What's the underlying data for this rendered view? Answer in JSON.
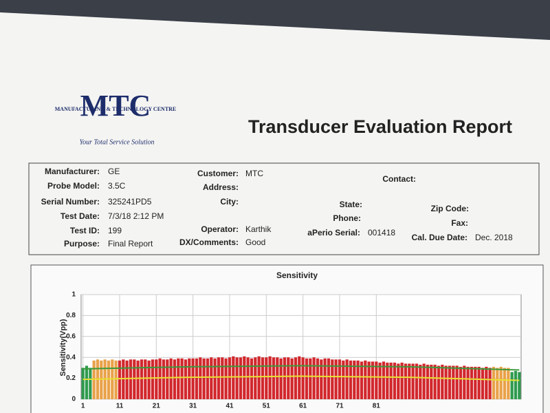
{
  "header": {
    "logo": "MTC",
    "company": "MANUFACTURING & TECHNOLOGY CENTRE",
    "tagline": "Your Total Service Solution",
    "title": "Transducer Evaluation Report"
  },
  "fields": [
    {
      "label": "Manufacturer:",
      "value": "GE"
    },
    {
      "label": "Probe Model:",
      "value": "3.5C"
    },
    {
      "label": "Serial Number:",
      "value": "325241PD5"
    },
    {
      "label": "Test Date:",
      "value": "7/3/18 2:12 PM"
    },
    {
      "label": "Test ID:",
      "value": "199"
    },
    {
      "label": "Purpose:",
      "value": "Final Report"
    },
    {
      "label": "Customer:",
      "value": "MTC"
    },
    {
      "label": "Address:"
    },
    {
      "label": "City:"
    },
    {
      "label": "Operator:",
      "value": "Karthik"
    },
    {
      "label": "DX/Comments:",
      "value": "Good"
    },
    {
      "label": "Contact:"
    },
    {
      "label": "State:"
    },
    {
      "label": "Phone:"
    },
    {
      "label": "aPerio Serial:",
      "value": "001418"
    },
    {
      "label": "Zip Code:"
    },
    {
      "label": "Fax:"
    },
    {
      "label": "Cal. Due Date:",
      "value": "Dec. 2018"
    }
  ],
  "chart_data": {
    "type": "bar",
    "title": "Sensitivity",
    "y_label": "Sensitivity(Vpp)",
    "x": [
      1,
      2,
      3,
      4,
      5,
      6,
      7,
      8,
      9,
      10,
      11,
      12,
      13,
      14,
      15,
      16,
      17,
      18,
      19,
      20,
      21,
      22,
      23,
      24,
      25,
      26,
      27,
      28,
      29,
      30,
      31,
      32,
      33,
      34,
      35,
      36,
      37,
      38,
      39,
      40,
      41,
      42,
      43,
      44,
      45,
      46,
      47,
      48,
      49,
      50,
      51,
      52,
      53,
      54,
      55,
      56,
      57,
      58,
      59,
      60,
      61,
      62,
      63,
      64,
      65,
      66,
      67,
      68,
      69,
      70,
      71,
      72,
      73,
      74,
      75,
      76,
      77,
      78,
      79,
      80,
      81,
      82,
      83,
      84,
      85,
      86,
      87,
      88,
      89,
      90,
      91,
      92,
      93,
      94,
      95,
      96,
      97,
      98,
      99,
      100,
      101,
      102,
      103,
      104,
      105,
      106,
      107,
      108,
      109,
      110,
      111,
      112,
      113,
      114,
      115,
      116,
      117,
      118,
      119,
      120
    ],
    "values": [
      0.3,
      0.32,
      0.3,
      0.37,
      0.38,
      0.37,
      0.38,
      0.37,
      0.38,
      0.37,
      0.37,
      0.38,
      0.37,
      0.38,
      0.38,
      0.37,
      0.38,
      0.38,
      0.37,
      0.38,
      0.38,
      0.39,
      0.38,
      0.38,
      0.39,
      0.38,
      0.39,
      0.39,
      0.38,
      0.39,
      0.39,
      0.39,
      0.4,
      0.39,
      0.39,
      0.4,
      0.39,
      0.4,
      0.4,
      0.39,
      0.4,
      0.41,
      0.4,
      0.4,
      0.41,
      0.4,
      0.39,
      0.4,
      0.41,
      0.4,
      0.4,
      0.41,
      0.4,
      0.4,
      0.39,
      0.4,
      0.4,
      0.39,
      0.4,
      0.41,
      0.4,
      0.39,
      0.39,
      0.4,
      0.39,
      0.38,
      0.39,
      0.39,
      0.38,
      0.38,
      0.38,
      0.37,
      0.38,
      0.37,
      0.37,
      0.37,
      0.36,
      0.37,
      0.36,
      0.36,
      0.36,
      0.35,
      0.36,
      0.35,
      0.35,
      0.35,
      0.34,
      0.35,
      0.34,
      0.34,
      0.34,
      0.34,
      0.33,
      0.34,
      0.33,
      0.33,
      0.33,
      0.32,
      0.33,
      0.32,
      0.32,
      0.32,
      0.32,
      0.31,
      0.32,
      0.31,
      0.31,
      0.31,
      0.31,
      0.3,
      0.31,
      0.3,
      0.31,
      0.3,
      0.31,
      0.3,
      0.3,
      0.26,
      0.27,
      0.26
    ],
    "colors": [
      "#2f9a4e",
      "#2f9a4e",
      "#2f9a4e",
      "#e9a24a",
      "#e9a24a",
      "#e9a24a",
      "#e9a24a",
      "#e9a24a",
      "#e9a24a",
      "#e9a24a",
      "#d1282d",
      "#d1282d",
      "#d1282d",
      "#d1282d",
      "#d1282d",
      "#d1282d",
      "#d1282d",
      "#d1282d",
      "#d1282d",
      "#d1282d",
      "#d1282d",
      "#d1282d",
      "#d1282d",
      "#d1282d",
      "#d1282d",
      "#d1282d",
      "#d1282d",
      "#d1282d",
      "#d1282d",
      "#d1282d",
      "#d1282d",
      "#d1282d",
      "#d1282d",
      "#d1282d",
      "#d1282d",
      "#d1282d",
      "#d1282d",
      "#d1282d",
      "#d1282d",
      "#d1282d",
      "#d1282d",
      "#d1282d",
      "#d1282d",
      "#d1282d",
      "#d1282d",
      "#d1282d",
      "#d1282d",
      "#d1282d",
      "#d1282d",
      "#d1282d",
      "#d1282d",
      "#d1282d",
      "#d1282d",
      "#d1282d",
      "#d1282d",
      "#d1282d",
      "#d1282d",
      "#d1282d",
      "#d1282d",
      "#d1282d",
      "#d1282d",
      "#d1282d",
      "#d1282d",
      "#d1282d",
      "#d1282d",
      "#d1282d",
      "#d1282d",
      "#d1282d",
      "#d1282d",
      "#d1282d",
      "#d1282d",
      "#d1282d",
      "#d1282d",
      "#d1282d",
      "#d1282d",
      "#d1282d",
      "#d1282d",
      "#d1282d",
      "#d1282d",
      "#d1282d",
      "#d1282d",
      "#d1282d",
      "#d1282d",
      "#d1282d",
      "#d1282d",
      "#d1282d",
      "#d1282d",
      "#d1282d",
      "#d1282d",
      "#d1282d",
      "#d1282d",
      "#d1282d",
      "#d1282d",
      "#d1282d",
      "#d1282d",
      "#d1282d",
      "#d1282d",
      "#d1282d",
      "#d1282d",
      "#d1282d",
      "#d1282d",
      "#d1282d",
      "#d1282d",
      "#d1282d",
      "#d1282d",
      "#d1282d",
      "#d1282d",
      "#d1282d",
      "#d1282d",
      "#d1282d",
      "#d1282d",
      "#d1282d",
      "#e9a24a",
      "#e9a24a",
      "#e9a24a",
      "#e9a24a",
      "#e9a24a",
      "#2f9a4e",
      "#2f9a4e",
      "#2f9a4e"
    ],
    "lines": [
      {
        "color": "#3b9a3b",
        "x": [
          1,
          30,
          60,
          90,
          120
        ],
        "values": [
          0.29,
          0.31,
          0.32,
          0.31,
          0.28
        ]
      },
      {
        "color": "#e8e030",
        "x": [
          1,
          30,
          60,
          90,
          120
        ],
        "values": [
          0.19,
          0.21,
          0.22,
          0.21,
          0.18
        ]
      }
    ],
    "xlim": [
      0.5,
      120.5
    ],
    "ylim": [
      0,
      1
    ],
    "xticks": [
      1,
      11,
      21,
      31,
      41,
      51,
      61,
      71,
      81
    ],
    "yticks": [
      0,
      0.2,
      0.4,
      0.6,
      0.8,
      1
    ],
    "grid": true
  }
}
